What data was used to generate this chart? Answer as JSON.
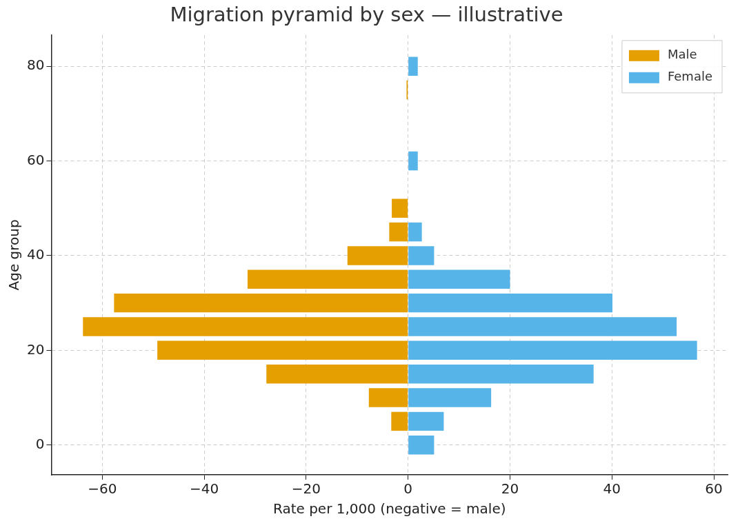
{
  "chart_data": {
    "type": "bar",
    "orientation": "horizontal",
    "stacked": true,
    "title": "Migration pyramid by sex — illustrative",
    "xlabel": "Rate per 1,000 (negative = male)",
    "ylabel": "Age group",
    "x": [
      0,
      5,
      10,
      15,
      20,
      25,
      30,
      35,
      40,
      45,
      50,
      55,
      60,
      65,
      70,
      75,
      80
    ],
    "series": [
      {
        "name": "Male",
        "color": "#e69f00",
        "values": [
          null,
          -3.3,
          -7.7,
          -27.8,
          -49.2,
          -63.8,
          -57.7,
          -31.5,
          -11.9,
          -3.7,
          -3.2,
          null,
          null,
          null,
          null,
          -0.3,
          null
        ]
      },
      {
        "name": "Female",
        "color": "#56b4e9",
        "values": [
          5.1,
          7.0,
          16.3,
          36.4,
          56.7,
          52.7,
          40.1,
          20.0,
          5.1,
          2.7,
          null,
          null,
          1.9,
          null,
          null,
          null,
          1.9
        ]
      }
    ],
    "xlim": [
      -70,
      62.7
    ],
    "xticks": [
      {
        "value": -60,
        "label": "−60"
      },
      {
        "value": -40,
        "label": "−40"
      },
      {
        "value": -20,
        "label": "−20"
      },
      0,
      20,
      40,
      60
    ],
    "ylim": [
      -6.3,
      86.6
    ],
    "yticks": [
      0,
      20,
      40,
      60,
      80
    ],
    "grid": true,
    "legend": "top right"
  }
}
